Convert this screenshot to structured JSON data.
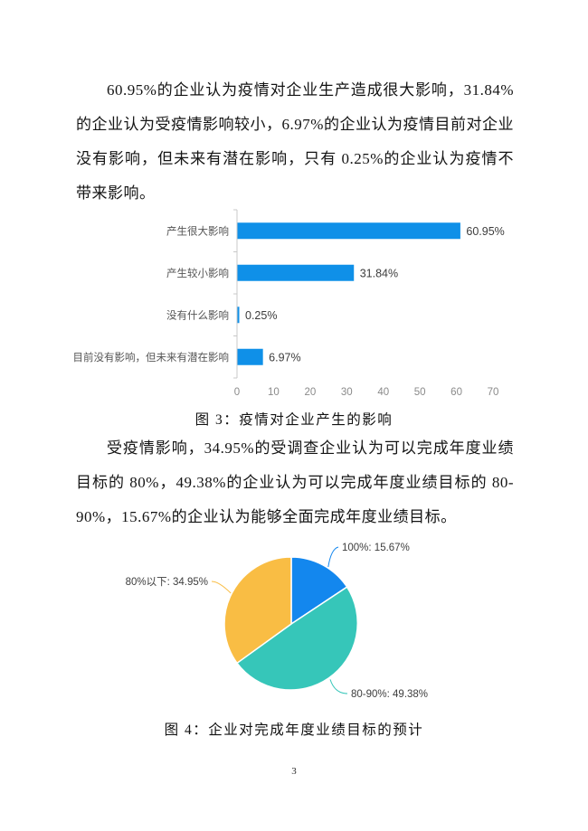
{
  "page": {
    "number": "3"
  },
  "paragraphs": {
    "p1": "60.95%的企业认为疫情对企业生产造成很大影响，31.84%的企业认为受疫情影响较小，6.97%的企业认为疫情目前对企业没有影响，但未来有潜在影响，只有 0.25%的企业认为疫情不带来影响。",
    "p2": "受疫情影响，34.95%的受调查企业认为可以完成年度业绩目标的 80%，49.38%的企业认为可以完成年度业绩目标的 80-90%，15.67%的企业认为能够全面完成年度业绩目标。"
  },
  "figure3": {
    "caption": "图 3：疫情对企业产生的影响"
  },
  "figure4": {
    "caption": "图 4：企业对完成年度业绩目标的预计"
  },
  "chart_data": [
    {
      "type": "bar",
      "orientation": "horizontal",
      "title": "疫情对企业产生的影响",
      "categories": [
        "产生很大影响",
        "产生较小影响",
        "没有什么影响",
        "目前没有影响，但未来有潜在影响"
      ],
      "values": [
        60.95,
        31.84,
        0.25,
        6.97
      ],
      "value_labels": [
        "60.95%",
        "31.84%",
        "0.25%",
        "6.97%"
      ],
      "xlim": [
        0,
        70
      ],
      "x_ticks": [
        0,
        10,
        20,
        30,
        40,
        50,
        60,
        70
      ],
      "grid": false,
      "legend": "none",
      "bar_color": "#0f90e8",
      "axis_color": "#c8c8c8",
      "category_label_color": "#555555",
      "value_label_color": "#3c3c3c",
      "tick_label_color": "#8a8a8a"
    },
    {
      "type": "pie",
      "title": "企业对完成年度业绩目标的预计",
      "categories": [
        "100%",
        "80-90%",
        "80%以下"
      ],
      "values": [
        15.67,
        49.38,
        34.95
      ],
      "labels": [
        "100%: 15.67%",
        "80-90%: 49.38%",
        "80%以下: 34.95%"
      ],
      "colors": [
        "#1387ee",
        "#36c6b9",
        "#f9bd44"
      ],
      "start_angle_deg": 0,
      "direction": "clockwise",
      "legend": "none",
      "label_color": "#3d3d3d"
    }
  ]
}
